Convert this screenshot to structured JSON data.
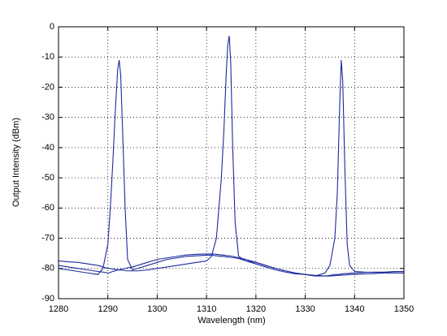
{
  "chart_data": {
    "type": "line",
    "xlabel": "Wavelength (nm)",
    "ylabel": "Output Intensity (dBm)",
    "x": [
      1280,
      1282,
      1284,
      1286,
      1288,
      1289,
      1290,
      1290.5,
      1291,
      1291.5,
      1292,
      1292.3,
      1292.6,
      1293,
      1293.5,
      1294,
      1295,
      1296,
      1298,
      1300,
      1302,
      1304,
      1306,
      1308,
      1310,
      1311,
      1312,
      1313,
      1313.5,
      1314,
      1314.3,
      1314.6,
      1314.9,
      1315.3,
      1315.8,
      1316.5,
      1318,
      1320,
      1322,
      1324,
      1326,
      1328,
      1330,
      1332,
      1334,
      1335,
      1336,
      1336.5,
      1337,
      1337.3,
      1337.6,
      1338,
      1338.5,
      1339,
      1340,
      1342,
      1344,
      1346,
      1348,
      1350
    ],
    "series": [
      {
        "color": "#1c2a9c",
        "values": [
          -80,
          -80.5,
          -81,
          -81.5,
          -82,
          -80,
          -72,
          -60,
          -45,
          -28,
          -14,
          -11,
          -16,
          -35,
          -60,
          -77,
          -80.5,
          -80,
          -79,
          -78,
          -77,
          -76.5,
          -76,
          -75.8,
          -75.6,
          -75.6,
          -75.8,
          -76,
          -76,
          -76.2,
          -76.2,
          -76.3,
          -76.3,
          -76.4,
          -76.5,
          -76.7,
          -77.5,
          -78.5,
          -79.5,
          -80.5,
          -81.2,
          -81.8,
          -82,
          -82.3,
          -82.5,
          -82.3,
          -82,
          -82,
          -82,
          -81.8,
          -81.8,
          -81.7,
          -81.7,
          -81.6,
          -81.5,
          -81.3,
          -81.2,
          -81.2,
          -81,
          -81
        ]
      },
      {
        "color": "#1c2a9c",
        "values": [
          -77.5,
          -77.8,
          -78,
          -78.5,
          -79,
          -79.5,
          -80,
          -80,
          -80.2,
          -80.3,
          -80.4,
          -80.5,
          -80.5,
          -80.6,
          -80.7,
          -80.8,
          -80.8,
          -80.8,
          -80.5,
          -80,
          -79.5,
          -79,
          -78.5,
          -78,
          -77.5,
          -76,
          -70,
          -50,
          -35,
          -15,
          -6,
          -3,
          -12,
          -40,
          -65,
          -76,
          -77.5,
          -78,
          -79,
          -80,
          -80.8,
          -81.5,
          -82,
          -82.5,
          -82.5,
          -82.5,
          -82.4,
          -82.3,
          -82.3,
          -82.2,
          -82.2,
          -82.2,
          -82.1,
          -82,
          -82,
          -81.8,
          -81.7,
          -81.5,
          -81.5,
          -81.5
        ]
      },
      {
        "color": "#1c2a9c",
        "values": [
          -79,
          -79.5,
          -80,
          -80.5,
          -81,
          -81.2,
          -81.5,
          -81.3,
          -81,
          -80.8,
          -80.5,
          -80.4,
          -80.3,
          -80.2,
          -80,
          -79.8,
          -79.5,
          -79,
          -78,
          -77,
          -76.5,
          -76,
          -75.5,
          -75.3,
          -75.2,
          -75.2,
          -75.3,
          -75.5,
          -75.6,
          -75.7,
          -75.8,
          -75.8,
          -75.9,
          -76,
          -76.2,
          -76.5,
          -77,
          -78,
          -79,
          -80,
          -80.8,
          -81.5,
          -82,
          -82.5,
          -81.5,
          -79,
          -70,
          -55,
          -25,
          -11,
          -18,
          -45,
          -72,
          -79,
          -81,
          -81.2,
          -81.3,
          -81.3,
          -81.4,
          -81.5
        ]
      }
    ],
    "xlim": [
      1280,
      1350
    ],
    "xticks": [
      1280,
      1290,
      1300,
      1310,
      1320,
      1330,
      1340,
      1350
    ],
    "ylim": [
      -90,
      0
    ],
    "yticks": [
      -90,
      -80,
      -70,
      -60,
      -50,
      -40,
      -30,
      -20,
      -10,
      0
    ],
    "grid": true
  }
}
